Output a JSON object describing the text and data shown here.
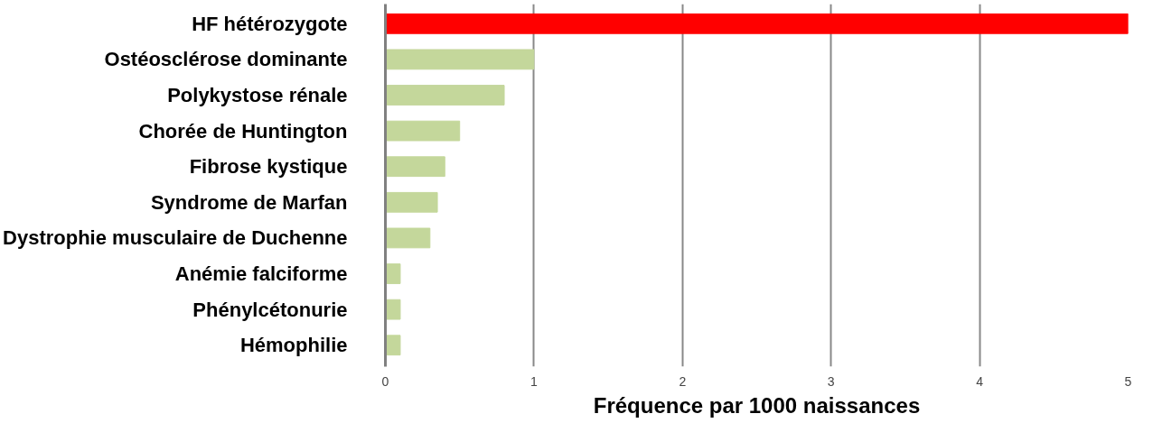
{
  "chart_data": {
    "type": "bar",
    "orientation": "horizontal",
    "xlabel": "Fréquence par 1000 naissances",
    "categories": [
      "HF hétérozygote",
      "Ostéosclérose dominante",
      "Polykystose rénale",
      "Chorée de Huntington",
      "Fibrose kystique",
      "Syndrome de Marfan",
      "Dystrophie musculaire de Duchenne",
      "Anémie falciforme",
      "Phénylcétonurie",
      "Hémophilie"
    ],
    "values": [
      5,
      1,
      0.8,
      0.5,
      0.4,
      0.35,
      0.3,
      0.1,
      0.1,
      0.1
    ],
    "colors": [
      "#ff0000",
      "#c4d79b",
      "#c4d79b",
      "#c4d79b",
      "#c4d79b",
      "#c4d79b",
      "#c4d79b",
      "#c4d79b",
      "#c4d79b",
      "#c4d79b"
    ],
    "xlim": [
      0,
      5
    ],
    "xticks": [
      0,
      1,
      2,
      3,
      4,
      5
    ],
    "grid": "x",
    "legend": false
  }
}
